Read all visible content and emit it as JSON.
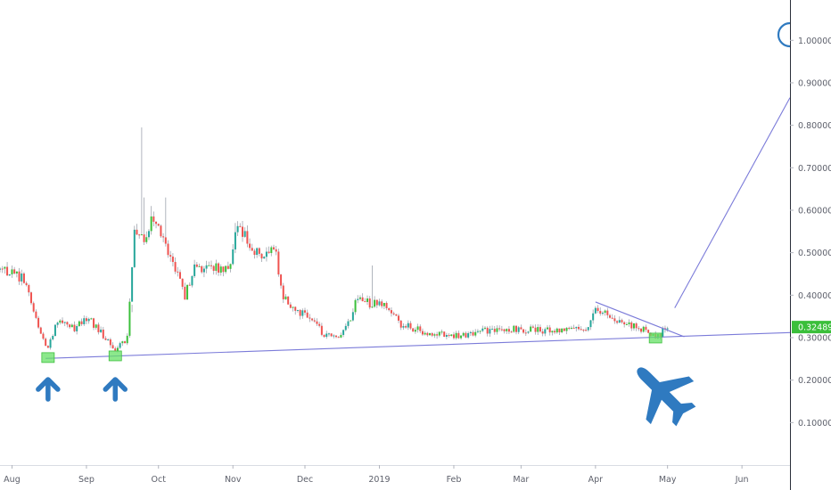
{
  "chart_data": {
    "type": "candlestick",
    "y_ticks": [
      {
        "value": 0.1,
        "label": "0.10000"
      },
      {
        "value": 0.2,
        "label": "0.20000"
      },
      {
        "value": 0.3,
        "label": "0.30000"
      },
      {
        "value": 0.4,
        "label": "0.40000"
      },
      {
        "value": 0.5,
        "label": "0.50000"
      },
      {
        "value": 0.6,
        "label": "0.60000"
      },
      {
        "value": 0.7,
        "label": "0.70000"
      },
      {
        "value": 0.8,
        "label": "0.80000"
      },
      {
        "value": 0.9,
        "label": "0.90000"
      },
      {
        "value": 1.0,
        "label": "1.00000"
      }
    ],
    "x_ticks": [
      {
        "date": "2018-08-01",
        "label": "Aug"
      },
      {
        "date": "2018-09-01",
        "label": "Sep"
      },
      {
        "date": "2018-10-01",
        "label": "Oct"
      },
      {
        "date": "2018-11-01",
        "label": "Nov"
      },
      {
        "date": "2018-12-01",
        "label": "Dec"
      },
      {
        "date": "2019-01-01",
        "label": "2019"
      },
      {
        "date": "2019-02-01",
        "label": "Feb"
      },
      {
        "date": "2019-03-01",
        "label": "Mar"
      },
      {
        "date": "2019-04-01",
        "label": "Apr"
      },
      {
        "date": "2019-05-01",
        "label": "May"
      },
      {
        "date": "2019-06-01",
        "label": "Jun"
      }
    ],
    "x_range": [
      "2018-07-27",
      "2019-06-21"
    ],
    "y_range": [
      0.0,
      1.095
    ],
    "last_price": {
      "value": 0.32489,
      "label": "0.32489"
    },
    "colors": {
      "up": "#26a69a",
      "up_alt": "#3bbf3b",
      "down": "#ef5350",
      "trendline": "#7b7bd9",
      "marker": "#66e066",
      "arrow": "#2f7ac0",
      "axis_text": "#5d606b",
      "last_price_bg": "#3bbf3b"
    },
    "support_line": {
      "from": {
        "date": "2018-08-15",
        "value": 0.251
      },
      "to": {
        "date": "2019-06-21",
        "value": 0.312
      }
    },
    "resistance_line": {
      "from": {
        "date": "2019-04-01",
        "value": 0.384
      },
      "to": {
        "date": "2019-05-08",
        "value": 0.302
      }
    },
    "projection_line": {
      "from": {
        "date": "2019-05-04",
        "value": 0.37
      },
      "to": {
        "date": "2019-06-21",
        "value": 0.865
      }
    },
    "support_touches": [
      {
        "date": "2018-08-16",
        "value": 0.252
      },
      {
        "date": "2018-09-13",
        "value": 0.256
      },
      {
        "date": "2019-04-26",
        "value": 0.298
      }
    ],
    "annotation_arrows": [
      "2018-08-16",
      "2018-09-13"
    ],
    "anchors": [
      [
        "2018-07-27",
        0.46
      ],
      [
        "2018-08-06",
        0.44
      ],
      [
        "2018-08-12",
        0.32
      ],
      [
        "2018-08-16",
        0.272
      ],
      [
        "2018-08-20",
        0.345
      ],
      [
        "2018-08-27",
        0.322
      ],
      [
        "2018-09-02",
        0.345
      ],
      [
        "2018-09-08",
        0.305
      ],
      [
        "2018-09-13",
        0.268
      ],
      [
        "2018-09-18",
        0.3
      ],
      [
        "2018-09-21",
        0.56
      ],
      [
        "2018-09-25",
        0.54
      ],
      [
        "2018-09-29",
        0.58
      ],
      [
        "2018-10-04",
        0.52
      ],
      [
        "2018-10-08",
        0.46
      ],
      [
        "2018-10-12",
        0.4
      ],
      [
        "2018-10-16",
        0.465
      ],
      [
        "2018-10-24",
        0.47
      ],
      [
        "2018-10-30",
        0.455
      ],
      [
        "2018-11-03",
        0.56
      ],
      [
        "2018-11-08",
        0.52
      ],
      [
        "2018-11-13",
        0.49
      ],
      [
        "2018-11-18",
        0.52
      ],
      [
        "2018-11-22",
        0.4
      ],
      [
        "2018-11-28",
        0.36
      ],
      [
        "2018-12-04",
        0.345
      ],
      [
        "2018-12-09",
        0.305
      ],
      [
        "2018-12-14",
        0.305
      ],
      [
        "2018-12-18",
        0.32
      ],
      [
        "2018-12-23",
        0.395
      ],
      [
        "2018-12-28",
        0.38
      ],
      [
        "2019-01-03",
        0.385
      ],
      [
        "2019-01-09",
        0.335
      ],
      [
        "2019-01-16",
        0.32
      ],
      [
        "2019-01-24",
        0.31
      ],
      [
        "2019-02-01",
        0.305
      ],
      [
        "2019-02-10",
        0.312
      ],
      [
        "2019-02-20",
        0.322
      ],
      [
        "2019-03-01",
        0.32
      ],
      [
        "2019-03-10",
        0.318
      ],
      [
        "2019-03-20",
        0.318
      ],
      [
        "2019-03-28",
        0.316
      ],
      [
        "2019-04-01",
        0.37
      ],
      [
        "2019-04-06",
        0.35
      ],
      [
        "2019-04-13",
        0.335
      ],
      [
        "2019-04-20",
        0.32
      ],
      [
        "2019-04-27",
        0.302
      ],
      [
        "2019-05-01",
        0.325
      ]
    ],
    "spikes": [
      [
        "2018-09-24",
        0.795
      ],
      [
        "2018-09-25",
        0.63
      ],
      [
        "2018-09-28",
        0.61
      ],
      [
        "2018-10-04",
        0.63
      ],
      [
        "2018-11-02",
        0.57
      ],
      [
        "2018-12-29",
        0.47
      ],
      [
        "2018-10-13",
        0.39
      ],
      [
        "2018-09-20",
        0.36
      ]
    ]
  }
}
